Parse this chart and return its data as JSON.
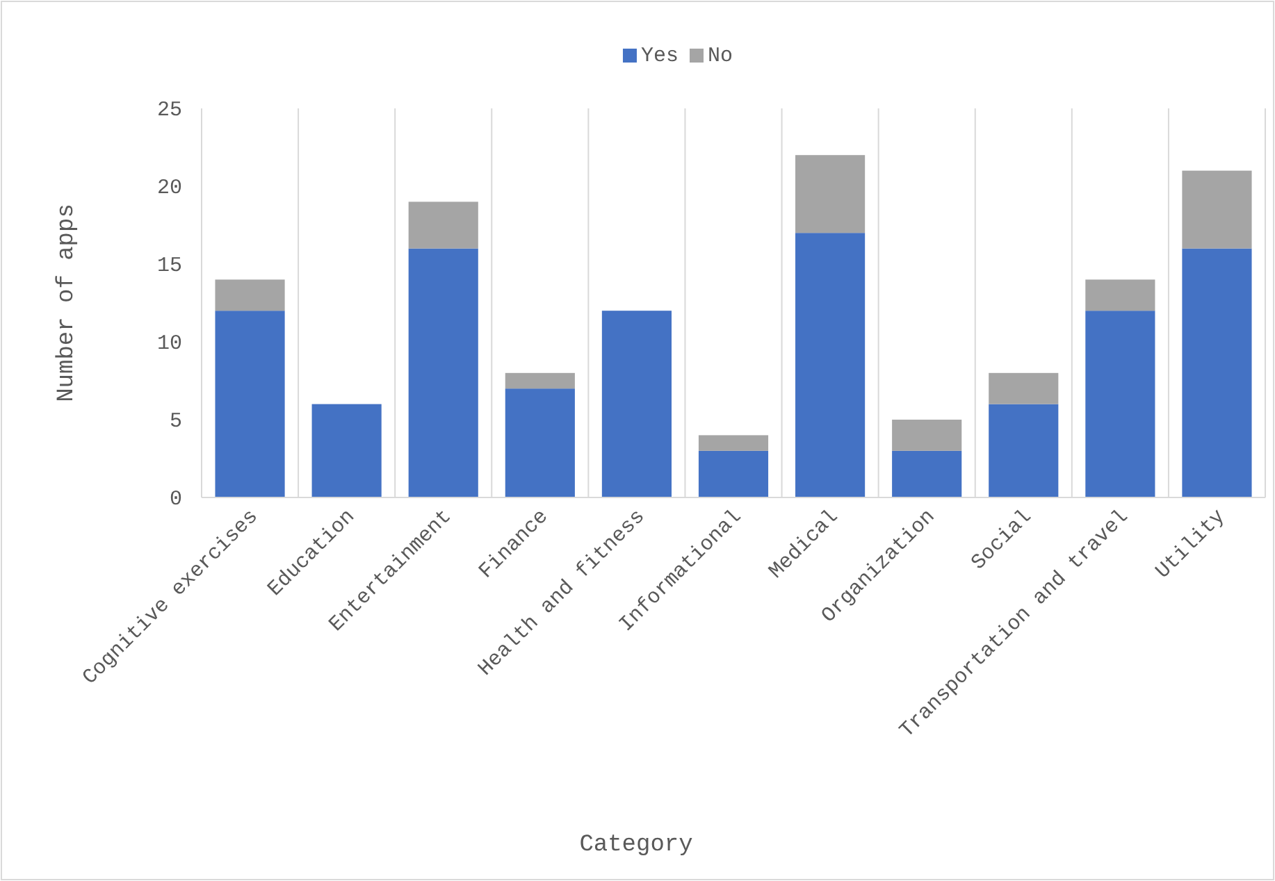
{
  "chart_data": {
    "type": "bar",
    "stacked": true,
    "xlabel": "Category",
    "ylabel": "Number of apps",
    "categories": [
      "Cognitive exercises",
      "Education",
      "Entertainment",
      "Finance",
      "Health and fitness",
      "Informational",
      "Medical",
      "Organization",
      "Social",
      "Transportation and travel",
      "Utility"
    ],
    "series": [
      {
        "name": "Yes",
        "color": "#4472c4",
        "values": [
          12,
          6,
          16,
          7,
          12,
          3,
          17,
          3,
          6,
          12,
          16
        ]
      },
      {
        "name": "No",
        "color": "#a5a5a5",
        "values": [
          2,
          0,
          3,
          1,
          0,
          1,
          5,
          2,
          2,
          2,
          5
        ]
      }
    ],
    "ylim": [
      0,
      25
    ],
    "yticks": [
      0,
      5,
      10,
      15,
      20,
      25
    ],
    "grid": "x",
    "legend": "top"
  }
}
